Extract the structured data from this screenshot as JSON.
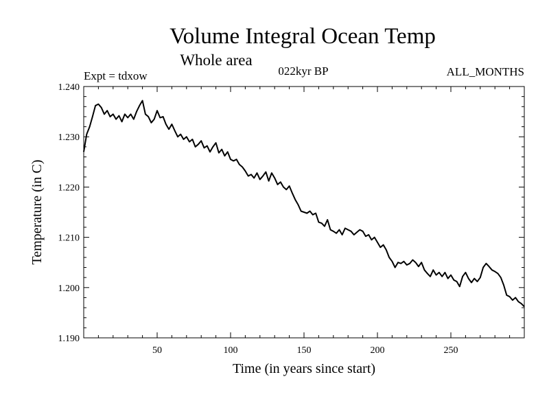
{
  "chart_data": {
    "type": "line",
    "title": "Volume Integral Ocean Temp",
    "subtitle": "Whole area",
    "left_note": "Expt = tdxow",
    "center_note": "022kyr BP",
    "right_note": "ALL_MONTHS",
    "xlabel": "Time (in years since start)",
    "ylabel": "Temperature (in C)",
    "xlim": [
      0,
      300
    ],
    "ylim": [
      1.19,
      1.24
    ],
    "xticks": [
      50,
      100,
      150,
      200,
      250
    ],
    "xtick_labels": [
      "50",
      "100",
      "150",
      "200",
      "250"
    ],
    "yticks": [
      1.19,
      1.2,
      1.21,
      1.22,
      1.23,
      1.24
    ],
    "ytick_labels": [
      "1.190",
      "1.200",
      "1.210",
      "1.220",
      "1.230",
      "1.240"
    ],
    "grid": false,
    "x": [
      0,
      2,
      4,
      6,
      8,
      10,
      12,
      14,
      16,
      18,
      20,
      22,
      24,
      26,
      28,
      30,
      32,
      34,
      36,
      38,
      40,
      42,
      44,
      46,
      48,
      50,
      52,
      54,
      56,
      58,
      60,
      62,
      64,
      66,
      68,
      70,
      72,
      74,
      76,
      78,
      80,
      82,
      84,
      86,
      88,
      90,
      92,
      94,
      96,
      98,
      100,
      102,
      104,
      106,
      108,
      110,
      112,
      114,
      116,
      118,
      120,
      122,
      124,
      126,
      128,
      130,
      132,
      134,
      136,
      138,
      140,
      142,
      144,
      146,
      148,
      150,
      152,
      154,
      156,
      158,
      160,
      162,
      164,
      166,
      168,
      170,
      172,
      174,
      176,
      178,
      180,
      182,
      184,
      186,
      188,
      190,
      192,
      194,
      196,
      198,
      200,
      202,
      204,
      206,
      208,
      210,
      212,
      214,
      216,
      218,
      220,
      222,
      224,
      226,
      228,
      230,
      232,
      234,
      236,
      238,
      240,
      242,
      244,
      246,
      248,
      250,
      252,
      254,
      256,
      258,
      260,
      262,
      264,
      266,
      268,
      270,
      272,
      274,
      276,
      278,
      280,
      282,
      284,
      286,
      288,
      290,
      292,
      294,
      296,
      298,
      300
    ],
    "y": [
      1.227,
      1.2305,
      1.232,
      1.234,
      1.2362,
      1.2365,
      1.2358,
      1.2345,
      1.2352,
      1.234,
      1.2345,
      1.2335,
      1.2342,
      1.233,
      1.2345,
      1.2338,
      1.2345,
      1.2335,
      1.235,
      1.2362,
      1.2372,
      1.2345,
      1.234,
      1.2328,
      1.2335,
      1.2352,
      1.2338,
      1.234,
      1.2325,
      1.2315,
      1.2325,
      1.2312,
      1.23,
      1.2305,
      1.2295,
      1.23,
      1.229,
      1.2295,
      1.228,
      1.2285,
      1.2292,
      1.2278,
      1.2282,
      1.227,
      1.228,
      1.2288,
      1.2268,
      1.2275,
      1.2262,
      1.227,
      1.2255,
      1.2252,
      1.2255,
      1.2245,
      1.224,
      1.2232,
      1.2222,
      1.2225,
      1.2218,
      1.2228,
      1.2215,
      1.2222,
      1.223,
      1.2212,
      1.2228,
      1.2218,
      1.2205,
      1.221,
      1.22,
      1.2195,
      1.2202,
      1.2188,
      1.2175,
      1.2165,
      1.2152,
      1.215,
      1.2148,
      1.2152,
      1.2145,
      1.2148,
      1.213,
      1.2128,
      1.2122,
      1.2135,
      1.2115,
      1.2112,
      1.2108,
      1.2115,
      1.2105,
      1.2118,
      1.2115,
      1.2112,
      1.2105,
      1.211,
      1.2115,
      1.2112,
      1.2102,
      1.2105,
      1.2095,
      1.21,
      1.209,
      1.208,
      1.2085,
      1.2075,
      1.206,
      1.2052,
      1.204,
      1.205,
      1.2048,
      1.2052,
      1.2045,
      1.2048,
      1.2055,
      1.205,
      1.2042,
      1.205,
      1.2035,
      1.2028,
      1.2022,
      1.2035,
      1.2025,
      1.203,
      1.2022,
      1.203,
      1.2018,
      1.2025,
      1.2015,
      1.2012,
      1.2002,
      1.2022,
      1.203,
      1.2018,
      1.201,
      1.2018,
      1.2012,
      1.202,
      1.204,
      1.2048,
      1.2042,
      1.2035,
      1.2032,
      1.2028,
      1.202,
      1.2005,
      1.1985,
      1.1982,
      1.1975,
      1.198,
      1.1972,
      1.1968,
      1.1962
    ]
  }
}
